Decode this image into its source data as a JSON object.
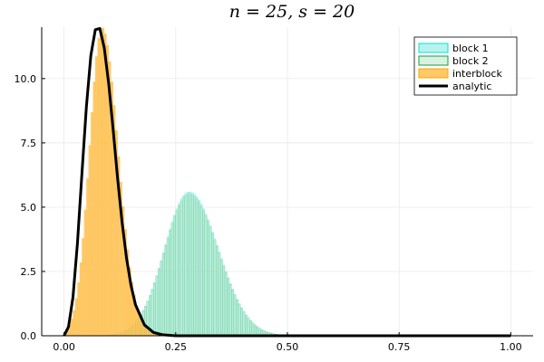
{
  "chart_data": {
    "type": "histogram",
    "title": "n = 25, s = 20",
    "xlabel": "",
    "ylabel": "",
    "xlim": [
      -0.05,
      1.05
    ],
    "ylim": [
      0,
      12
    ],
    "xticks": [
      0,
      0.25,
      0.5,
      0.75,
      1.0
    ],
    "xtick_labels": [
      "0.00",
      "0.25",
      "0.50",
      "0.75",
      "1.00"
    ],
    "yticks": [
      0,
      2.5,
      5,
      7.5,
      10
    ],
    "ytick_labels": [
      "0.0",
      "2.5",
      "5.0",
      "7.5",
      "10.0"
    ],
    "grid": true,
    "legend_position": "top-right",
    "bin_width": 0.005,
    "series": [
      {
        "name": "block 1",
        "kind": "histogram",
        "fill": "#7fe8df",
        "edge": "#00e5d5",
        "x_range": [
          0.1,
          0.52
        ],
        "peak_x": 0.28,
        "peak_y": 5.6,
        "spread_left": 0.055,
        "spread_right": 0.065
      },
      {
        "name": "block 2",
        "kind": "histogram",
        "fill": "#b7e7c8",
        "edge": "#1a9e3a",
        "x_range": [
          0.1,
          0.52
        ],
        "peak_x": 0.28,
        "peak_y": 5.5,
        "spread_left": 0.055,
        "spread_right": 0.065
      },
      {
        "name": "interblock",
        "kind": "histogram",
        "fill": "#ffc04d",
        "edge": "#f7a800",
        "x_range": [
          0.0,
          0.24
        ],
        "peak_x": 0.085,
        "peak_y": 12.0,
        "spread_left": 0.028,
        "spread_right": 0.036
      },
      {
        "name": "analytic",
        "kind": "line",
        "color": "#000000",
        "x": [
          0,
          0.01,
          0.02,
          0.03,
          0.04,
          0.05,
          0.06,
          0.07,
          0.08,
          0.09,
          0.1,
          0.11,
          0.12,
          0.13,
          0.14,
          0.15,
          0.16,
          0.18,
          0.2,
          0.22,
          0.25,
          0.3,
          0.4,
          0.5,
          0.75,
          1.0
        ],
        "y": [
          0,
          0.35,
          1.5,
          3.6,
          6.3,
          8.9,
          10.9,
          11.9,
          11.95,
          11.2,
          9.8,
          8.0,
          6.1,
          4.4,
          3.0,
          1.95,
          1.2,
          0.42,
          0.13,
          0.04,
          0.0,
          0.0,
          0.0,
          0.0,
          0.0,
          0.0
        ]
      }
    ]
  }
}
